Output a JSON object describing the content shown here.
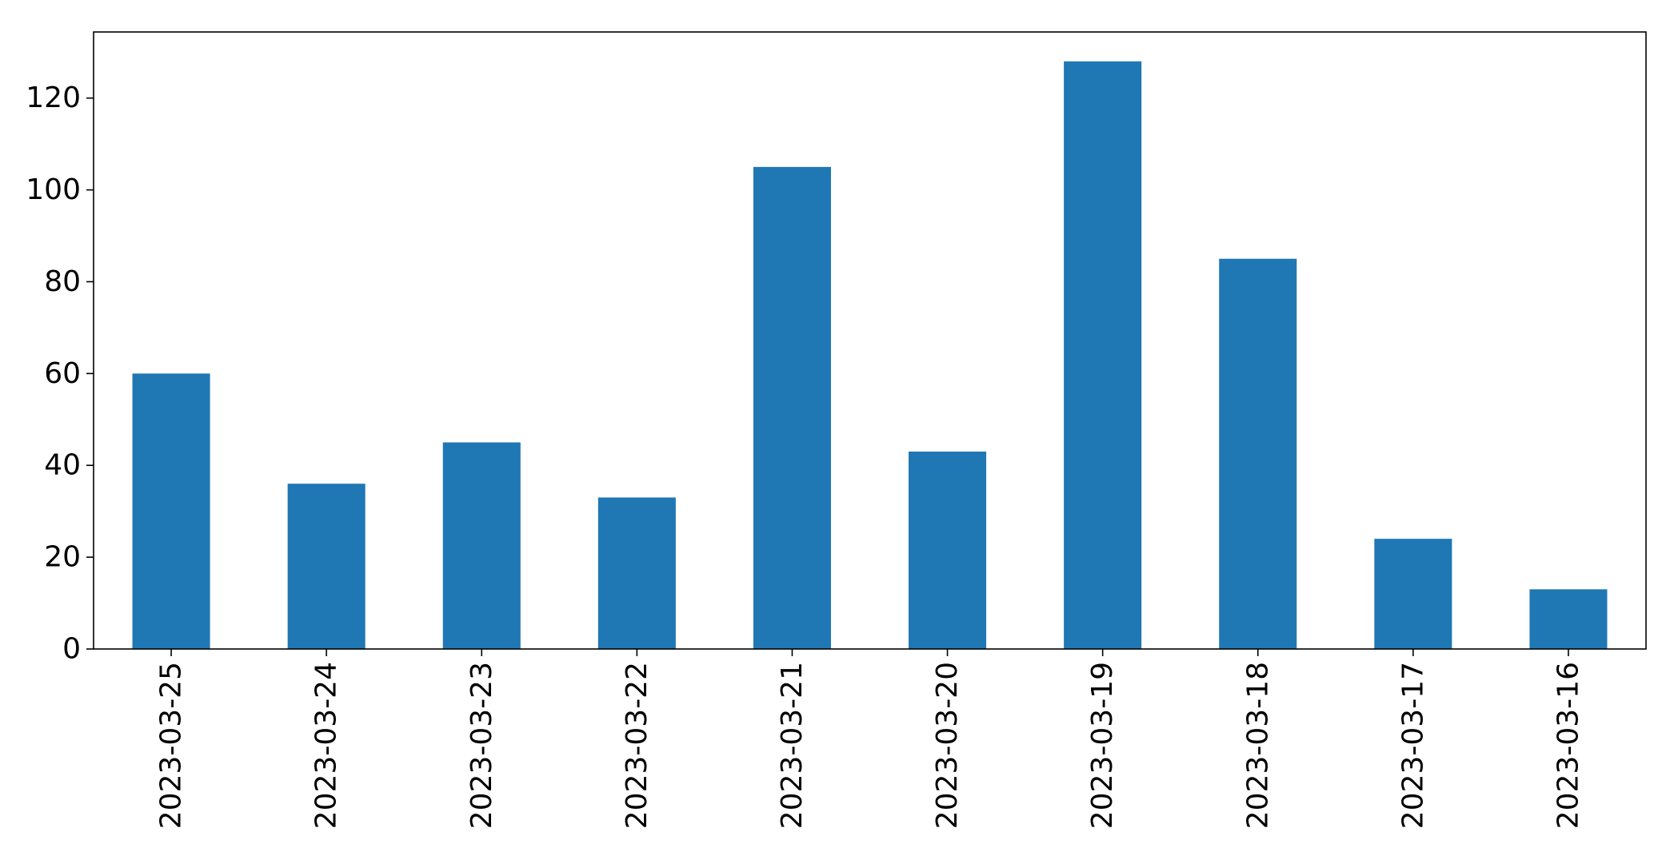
{
  "chart_data": {
    "type": "bar",
    "title": "",
    "xlabel": "",
    "ylabel": "",
    "categories": [
      "2023-03-25",
      "2023-03-24",
      "2023-03-23",
      "2023-03-22",
      "2023-03-21",
      "2023-03-20",
      "2023-03-19",
      "2023-03-18",
      "2023-03-17",
      "2023-03-16"
    ],
    "values": [
      60,
      36,
      45,
      33,
      105,
      43,
      128,
      85,
      24,
      13
    ],
    "ylim": [
      0,
      134.4
    ],
    "yticks": [
      0,
      20,
      40,
      60,
      80,
      100,
      120
    ],
    "ytick_labels": [
      "0",
      "20",
      "40",
      "60",
      "80",
      "100",
      "120"
    ],
    "bar_color": "#1f77b4",
    "grid": false,
    "legend": "none",
    "xtick_rotation": "vertical"
  }
}
